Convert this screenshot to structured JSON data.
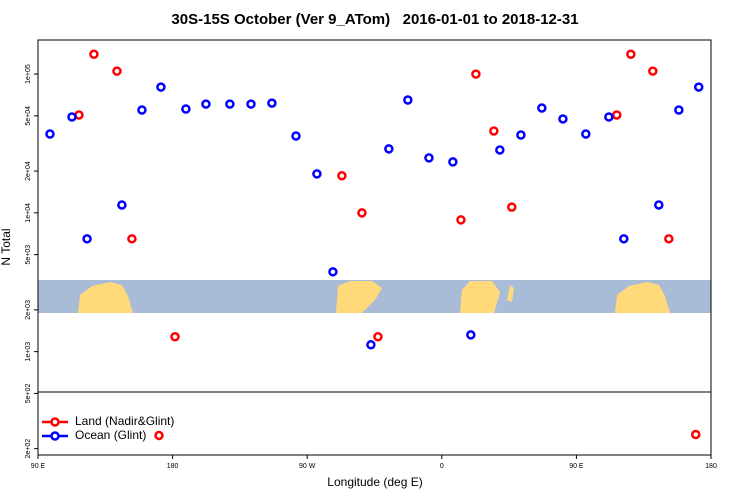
{
  "chart_data": {
    "type": "scatter",
    "title": "30S-15S October (Ver 9_ATom)   2016-01-01 to 2018-12-31",
    "x_label": "Longitude (deg E)",
    "y_label": "N Total",
    "xlim": [
      90,
      540
    ],
    "xticks": [
      {
        "value": 90,
        "label": "90 E"
      },
      180,
      {
        "value": 270,
        "label": "90 W"
      },
      {
        "value": 360,
        "label": "0"
      },
      {
        "value": 450,
        "label": "90 E"
      },
      {
        "value": 540,
        "label": "180"
      }
    ],
    "ylim": [
      180,
      176000
    ],
    "ylog": true,
    "yticks": [
      {
        "value": 200,
        "label": "2e+02"
      },
      {
        "value": 500,
        "label": "5e+02"
      },
      {
        "value": 1000,
        "label": "1e+03"
      },
      {
        "value": 2000,
        "label": "2e+03"
      },
      {
        "value": 5000,
        "label": "5e+03"
      },
      {
        "value": 10000,
        "label": "1e+04"
      },
      {
        "value": 20000,
        "label": "2e+04"
      },
      {
        "value": 50000,
        "label": "5e+04"
      },
      {
        "value": 100000,
        "label": "1e+05"
      }
    ],
    "legend": "bottom-left",
    "series": [
      {
        "name": "Land (Nadir&Glint)",
        "color": "#ff0000",
        "x": [
          117.4,
          127.4,
          142.8,
          152.8,
          170.9,
          181.6,
          293.2,
          306.6,
          317.3,
          372.8,
          382.8,
          394.8,
          406.8,
          477,
          486.4,
          501.1,
          511.8,
          529.8
        ],
        "values": [
          50700,
          139000,
          105000,
          6500,
          249,
          1280,
          18500,
          10000,
          1280,
          8900,
          100000,
          38900,
          11000,
          50700,
          139000,
          105000,
          6500,
          253
        ]
      },
      {
        "name": "Ocean (Glint)",
        "color": "#0000ff",
        "x": [
          98,
          112.7,
          122.8,
          146.1,
          159.5,
          172.2,
          188.9,
          202.3,
          218.3,
          232.4,
          246.4,
          262.5,
          276.5,
          287.2,
          312.6,
          324.6,
          337.3,
          351.4,
          367.4,
          379.4,
          398.8,
          412.9,
          426.9,
          441,
          456.3,
          471.7,
          481.7,
          505.1,
          518.5,
          531.8
        ],
        "values": [
          37000,
          49100,
          6500,
          11400,
          55100,
          80600,
          56000,
          60800,
          60800,
          60800,
          61800,
          35800,
          19100,
          3760,
          1120,
          28900,
          65000,
          24900,
          23300,
          1320,
          28400,
          36400,
          56900,
          47500,
          37000,
          49100,
          6500,
          11400,
          55100,
          80600
        ]
      }
    ]
  }
}
